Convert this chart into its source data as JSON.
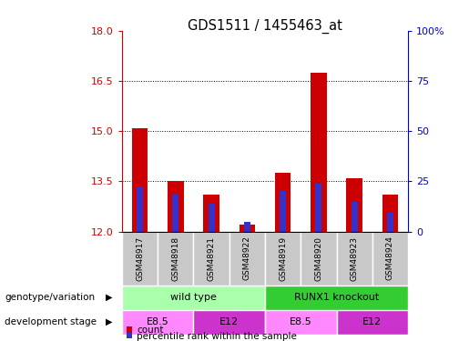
{
  "title": "GDS1511 / 1455463_at",
  "samples": [
    "GSM48917",
    "GSM48918",
    "GSM48921",
    "GSM48922",
    "GSM48919",
    "GSM48920",
    "GSM48923",
    "GSM48924"
  ],
  "count_values": [
    15.1,
    13.5,
    13.1,
    12.22,
    13.75,
    16.75,
    13.6,
    13.1
  ],
  "blue_bar_values": [
    13.35,
    13.12,
    12.82,
    12.28,
    13.22,
    13.42,
    12.88,
    12.55
  ],
  "ymin": 12,
  "ymax": 18,
  "yticks": [
    12,
    13.5,
    15,
    16.5,
    18
  ],
  "right_yticks": [
    0,
    25,
    50,
    75,
    100
  ],
  "bar_color": "#cc0000",
  "blue_color": "#3333cc",
  "left_axis_color": "#cc0000",
  "right_axis_color": "#0000cc",
  "sample_bg": "#c8c8c8",
  "genotype_groups": [
    {
      "label": "wild type",
      "start": 0,
      "end": 4,
      "color": "#aaffaa"
    },
    {
      "label": "RUNX1 knockout",
      "start": 4,
      "end": 8,
      "color": "#33cc33"
    }
  ],
  "dev_stage_groups": [
    {
      "label": "E8.5",
      "start": 0,
      "end": 2,
      "color": "#ff88ff"
    },
    {
      "label": "E12",
      "start": 2,
      "end": 4,
      "color": "#cc33cc"
    },
    {
      "label": "E8.5",
      "start": 4,
      "end": 6,
      "color": "#ff88ff"
    },
    {
      "label": "E12",
      "start": 6,
      "end": 8,
      "color": "#cc33cc"
    }
  ],
  "bar_width": 0.45,
  "blue_bar_width": 0.18
}
